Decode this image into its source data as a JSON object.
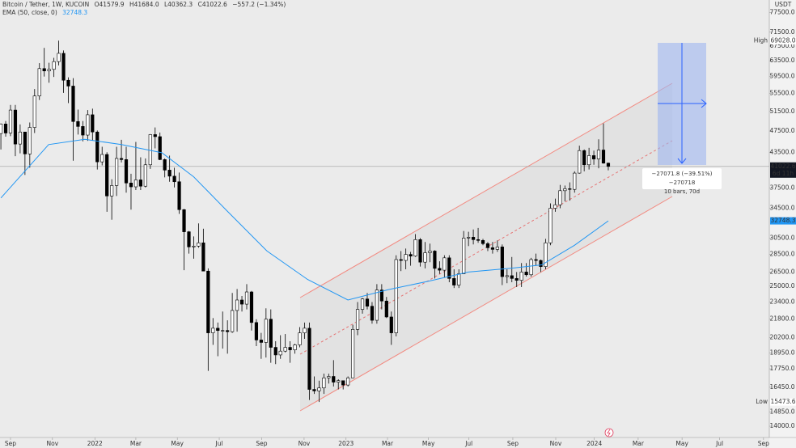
{
  "header": {
    "symbol": "Bitcoin / Tether, 1W, KUCOIN",
    "ohlc": [
      "O41579.9",
      "H41684.0",
      "L40362.3",
      "C41022.6",
      "−557.2 (−1.34%)"
    ],
    "ema": "EMA (50, close, 0)",
    "ema_value": "32748.3"
  },
  "projection": {
    "change": "−27071.8 (−39.51%) −270718",
    "span": "10 bars, 70d"
  },
  "chart_data": {
    "type": "candlestick",
    "currency": "USDT",
    "log_scale": true,
    "up_color": "#ffffff",
    "down_color": "#000000",
    "wick_color": "#000000",
    "ema_color": "#2196f3",
    "x": [
      -2,
      -1,
      0,
      1,
      2,
      3,
      4,
      5,
      6,
      7,
      8,
      9,
      10,
      11,
      12,
      13,
      14,
      15,
      16,
      17,
      18,
      19,
      20,
      21,
      22,
      23,
      24,
      25,
      26,
      27,
      28,
      29,
      30,
      31,
      32,
      33,
      34,
      35,
      36,
      37,
      38,
      39,
      40,
      41,
      42,
      43,
      44,
      45,
      46,
      47,
      48,
      49,
      50,
      51,
      52,
      53,
      54,
      55,
      56,
      57,
      58,
      59,
      60,
      61,
      62,
      63,
      64,
      65,
      66,
      67,
      68,
      69,
      70,
      71,
      72,
      73,
      74,
      75,
      76,
      77,
      78,
      79,
      80,
      81,
      82,
      83,
      84,
      85,
      86,
      87,
      88,
      89,
      90,
      91,
      92,
      93,
      94,
      95,
      96,
      97,
      98,
      99,
      100,
      101,
      102,
      103,
      104,
      105,
      106,
      107,
      108,
      109,
      110,
      111,
      112,
      113,
      114,
      115,
      116,
      117,
      118,
      119,
      120,
      121,
      122,
      123,
      124
    ],
    "candles": [
      [
        47000,
        49000,
        44000,
        48900
      ],
      [
        48900,
        49500,
        46400,
        47100
      ],
      [
        47100,
        52900,
        46500,
        51800
      ],
      [
        51800,
        52900,
        42800,
        45000
      ],
      [
        45000,
        48800,
        43300,
        47300
      ],
      [
        47300,
        47300,
        39600,
        43200
      ],
      [
        43200,
        49200,
        40800,
        48200
      ],
      [
        48200,
        56500,
        47100,
        54900
      ],
      [
        54900,
        62900,
        54000,
        61500
      ],
      [
        61500,
        67000,
        59500,
        60900
      ],
      [
        60900,
        63000,
        58000,
        61300
      ],
      [
        61300,
        64300,
        59400,
        63300
      ],
      [
        63300,
        69028,
        62300,
        65500
      ],
      [
        65500,
        66300,
        55600,
        58600
      ],
      [
        58600,
        59300,
        53300,
        57200
      ],
      [
        57200,
        59100,
        42000,
        49400
      ],
      [
        49400,
        51900,
        46800,
        48400
      ],
      [
        48400,
        49500,
        45500,
        46700
      ],
      [
        46700,
        51800,
        45600,
        50800
      ],
      [
        50800,
        52100,
        45700,
        47300
      ],
      [
        47300,
        47600,
        40500,
        41800
      ],
      [
        41800,
        44500,
        41200,
        43100
      ],
      [
        43100,
        43500,
        34000,
        36300
      ],
      [
        36300,
        38900,
        32900,
        37900
      ],
      [
        37900,
        44500,
        36300,
        42400
      ],
      [
        42400,
        45800,
        41700,
        42200
      ],
      [
        42200,
        44500,
        36800,
        38300
      ],
      [
        38300,
        39800,
        34300,
        37700
      ],
      [
        37700,
        45400,
        37200,
        38800
      ],
      [
        38800,
        42600,
        37200,
        37800
      ],
      [
        37800,
        42400,
        37600,
        41300
      ],
      [
        41300,
        46900,
        40600,
        46800
      ],
      [
        46800,
        48200,
        44200,
        46400
      ],
      [
        46400,
        47200,
        42100,
        42200
      ],
      [
        42200,
        42400,
        39200,
        40400
      ],
      [
        40400,
        42900,
        38500,
        39400
      ],
      [
        39400,
        40800,
        37600,
        38500
      ],
      [
        38500,
        40000,
        33700,
        34300
      ],
      [
        34300,
        34400,
        26700,
        31300
      ],
      [
        31300,
        31400,
        28600,
        29400
      ],
      [
        29400,
        30700,
        28000,
        29500
      ],
      [
        29500,
        32400,
        29300,
        29900
      ],
      [
        29900,
        31700,
        26600,
        26600
      ],
      [
        26600,
        26900,
        17600,
        20600
      ],
      [
        20600,
        21900,
        19600,
        21000
      ],
      [
        21000,
        21500,
        18700,
        20800
      ],
      [
        20800,
        22500,
        19300,
        20800
      ],
      [
        20800,
        21700,
        18900,
        20700
      ],
      [
        20700,
        24300,
        20600,
        22600
      ],
      [
        22600,
        24700,
        20700,
        23600
      ],
      [
        23600,
        24000,
        22500,
        23200
      ],
      [
        23200,
        25200,
        22700,
        24400
      ],
      [
        24400,
        24500,
        20800,
        21500
      ],
      [
        21500,
        21800,
        19500,
        20000
      ],
      [
        20000,
        20600,
        18500,
        19800
      ],
      [
        19800,
        22800,
        18600,
        21800
      ],
      [
        21800,
        22700,
        18200,
        19400
      ],
      [
        19400,
        19900,
        18100,
        18800
      ],
      [
        18800,
        20400,
        18500,
        19100
      ],
      [
        19100,
        20500,
        19000,
        19400
      ],
      [
        19400,
        19900,
        18200,
        19200
      ],
      [
        19200,
        19700,
        18900,
        19600
      ],
      [
        19600,
        21100,
        19400,
        20600
      ],
      [
        20600,
        21500,
        20100,
        21000
      ],
      [
        21000,
        21500,
        15600,
        16300
      ],
      [
        16300,
        17200,
        16000,
        16200
      ],
      [
        16200,
        16900,
        15474,
        16400
      ],
      [
        16400,
        17400,
        16000,
        17100
      ],
      [
        17100,
        17400,
        16700,
        17200
      ],
      [
        17200,
        18400,
        16500,
        16800
      ],
      [
        16800,
        17000,
        16300,
        16900
      ],
      [
        16900,
        16900,
        16300,
        16600
      ],
      [
        16600,
        17200,
        16500,
        17100
      ],
      [
        17100,
        21300,
        17100,
        20900
      ],
      [
        20900,
        23400,
        20400,
        22700
      ],
      [
        22700,
        23800,
        22300,
        23700
      ],
      [
        23700,
        24300,
        22700,
        23000
      ],
      [
        23000,
        23400,
        21400,
        21700
      ],
      [
        21700,
        25200,
        21400,
        24600
      ],
      [
        24600,
        25200,
        22700,
        23500
      ],
      [
        23500,
        23900,
        21900,
        22000
      ],
      [
        22000,
        22500,
        19600,
        20600
      ],
      [
        20600,
        28400,
        20300,
        27900
      ],
      [
        27900,
        28900,
        26600,
        27800
      ],
      [
        27800,
        29200,
        26800,
        28500
      ],
      [
        28500,
        28800,
        27200,
        28300
      ],
      [
        28300,
        31000,
        28200,
        30300
      ],
      [
        30300,
        30500,
        27100,
        27600
      ],
      [
        27600,
        30000,
        26900,
        28700
      ],
      [
        28700,
        29800,
        27600,
        28900
      ],
      [
        28900,
        29000,
        25800,
        26900
      ],
      [
        26900,
        27700,
        26300,
        26700
      ],
      [
        26700,
        28400,
        25900,
        28100
      ],
      [
        28100,
        28400,
        25400,
        25800
      ],
      [
        25800,
        26800,
        24800,
        25100
      ],
      [
        25100,
        26800,
        24800,
        26300
      ],
      [
        26300,
        31400,
        26300,
        30500
      ],
      [
        30500,
        31300,
        29500,
        30600
      ],
      [
        30600,
        31600,
        29700,
        30300
      ],
      [
        30300,
        31800,
        29900,
        30200
      ],
      [
        30200,
        30400,
        29600,
        29800
      ],
      [
        29800,
        30000,
        28900,
        29300
      ],
      [
        29300,
        30000,
        28600,
        29100
      ],
      [
        29100,
        30200,
        28800,
        29400
      ],
      [
        29400,
        29700,
        25100,
        26000
      ],
      [
        26000,
        26800,
        25300,
        26100
      ],
      [
        26100,
        28200,
        25400,
        25800
      ],
      [
        25800,
        26500,
        24900,
        25600
      ],
      [
        25600,
        27500,
        24900,
        26500
      ],
      [
        26500,
        27500,
        26000,
        26200
      ],
      [
        26200,
        28100,
        26000,
        27900
      ],
      [
        27900,
        28600,
        27200,
        27800
      ],
      [
        27800,
        27900,
        26500,
        27100
      ],
      [
        27100,
        30400,
        26800,
        29900
      ],
      [
        29900,
        35200,
        29600,
        34500
      ],
      [
        34500,
        35900,
        34000,
        35000
      ],
      [
        35000,
        38000,
        34500,
        37100
      ],
      [
        37100,
        37900,
        35500,
        37400
      ],
      [
        37400,
        38400,
        35600,
        37300
      ],
      [
        37300,
        40200,
        36800,
        39900
      ],
      [
        39900,
        44700,
        39800,
        43800
      ],
      [
        43800,
        44000,
        40200,
        41300
      ],
      [
        41300,
        44300,
        40500,
        42900
      ],
      [
        42900,
        43800,
        41300,
        42300
      ],
      [
        42300,
        45900,
        40700,
        43900
      ],
      [
        43900,
        49000,
        41500,
        41580
      ],
      [
        41579.9,
        41684.0,
        40362.3,
        41022.6
      ]
    ],
    "ema": {
      "x": [
        -2,
        7.9,
        15.4,
        23,
        31.4,
        38,
        44.8,
        53.2,
        61.6,
        70,
        78.4,
        86.7,
        95,
        103.5,
        110.2,
        117,
        124
      ],
      "values": [
        36000,
        44900,
        45900,
        44900,
        43400,
        39300,
        34200,
        28900,
        25700,
        23600,
        24640,
        25500,
        26500,
        26900,
        27300,
        29600,
        32748.3
      ]
    },
    "xlim": [
      -2.18,
      157.4
    ],
    "xticks": [
      {
        "value": 0,
        "label": "Sep"
      },
      {
        "value": 8.7,
        "label": "Nov"
      },
      {
        "value": 17.5,
        "label": "2022"
      },
      {
        "value": 26,
        "label": "Mar"
      },
      {
        "value": 34.6,
        "label": "May"
      },
      {
        "value": 43.3,
        "label": "Jul"
      },
      {
        "value": 52.1,
        "label": "Sep"
      },
      {
        "value": 60.9,
        "label": "Nov"
      },
      {
        "value": 69.6,
        "label": "2023"
      },
      {
        "value": 78.2,
        "label": "Mar"
      },
      {
        "value": 86.7,
        "label": "May"
      },
      {
        "value": 95.1,
        "label": "Jul"
      },
      {
        "value": 104.2,
        "label": "Sep"
      },
      {
        "value": 113.1,
        "label": "Nov"
      },
      {
        "value": 121.1,
        "label": "2024"
      },
      {
        "value": 130.2,
        "label": "Mar"
      },
      {
        "value": 139.3,
        "label": "May"
      },
      {
        "value": 147.1,
        "label": "Jul"
      },
      {
        "value": 156.2,
        "label": "Sep"
      }
    ],
    "ylim": [
      13360,
      81680
    ],
    "yticks": [
      {
        "value": 77500,
        "label": "77500.0"
      },
      {
        "value": 71500,
        "label": "71500.0"
      },
      {
        "value": 67500,
        "label": "67500.0"
      },
      {
        "value": 63500,
        "label": "63500.0"
      },
      {
        "value": 59500,
        "label": "59500.0"
      },
      {
        "value": 55500,
        "label": "55500.0"
      },
      {
        "value": 51500,
        "label": "51500.0"
      },
      {
        "value": 47500,
        "label": "47500.0"
      },
      {
        "value": 43500,
        "label": "43500.0"
      },
      {
        "value": 37500,
        "label": "37500.0"
      },
      {
        "value": 34500,
        "label": "34500.0"
      },
      {
        "value": 30500,
        "label": "30500.0"
      },
      {
        "value": 28500,
        "label": "28500.0"
      },
      {
        "value": 26500,
        "label": "26500.0"
      },
      {
        "value": 25000,
        "label": "25000.0"
      },
      {
        "value": 23400,
        "label": "23400.0"
      },
      {
        "value": 21800,
        "label": "21800.0"
      },
      {
        "value": 20200,
        "label": "20200.0"
      },
      {
        "value": 18950,
        "label": "18950.0"
      },
      {
        "value": 17750,
        "label": "17750.0"
      },
      {
        "value": 16450,
        "label": "16450.0"
      },
      {
        "value": 14850,
        "label": "14850.0"
      },
      {
        "value": 14000,
        "label": "14000.0"
      }
    ],
    "high": {
      "name": "High",
      "value": 69028,
      "label": "69028.0"
    },
    "low": {
      "name": "Low",
      "value": 15473.6,
      "label": "15473.6"
    },
    "last": {
      "value": 41022.6,
      "label": "41022.6",
      "countdown": "6d 11h"
    },
    "ema_last": {
      "value": 32748.3,
      "label": "32748.3"
    }
  }
}
